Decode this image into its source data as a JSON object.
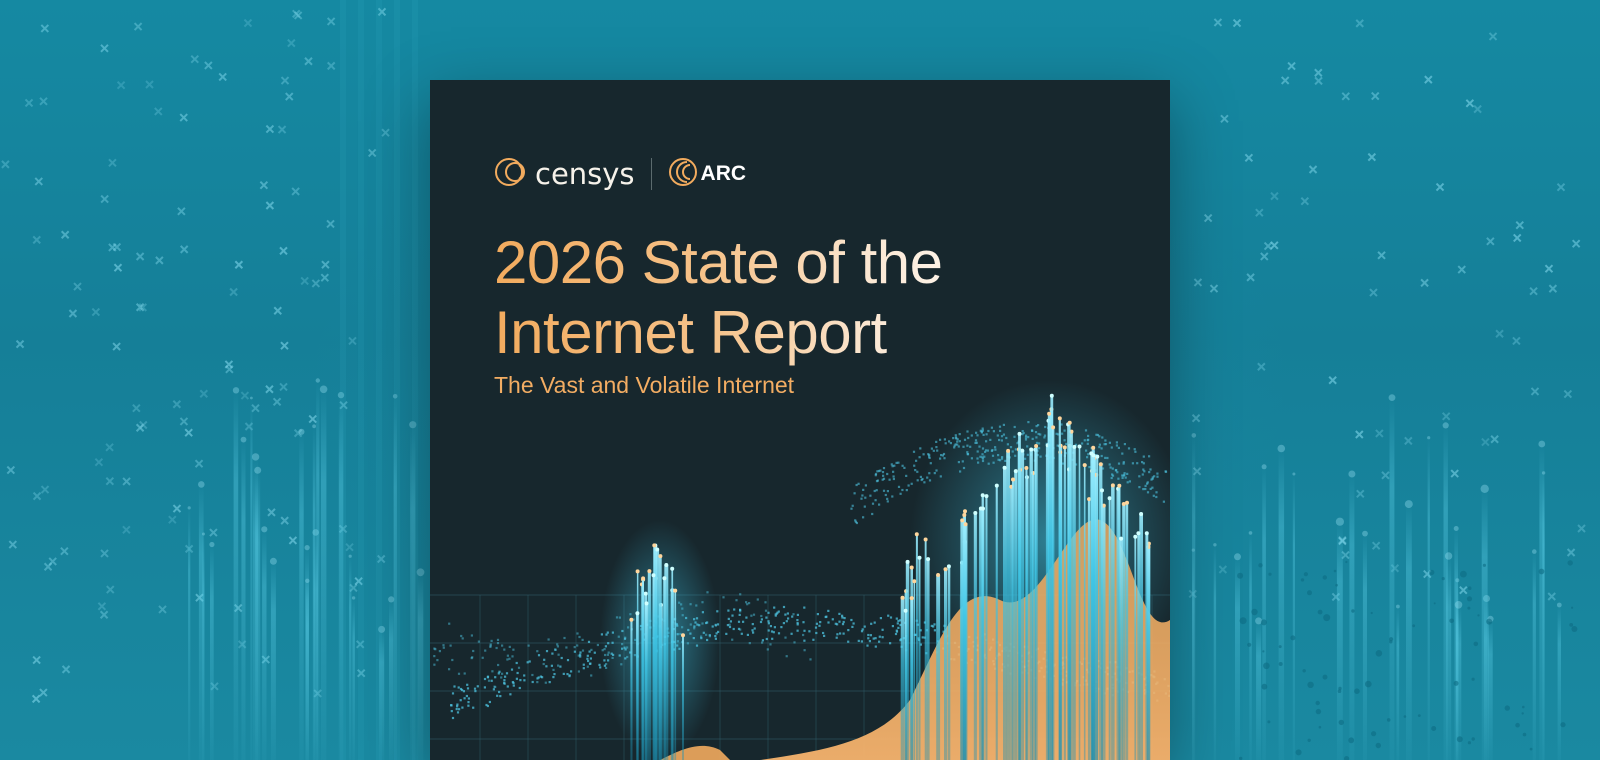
{
  "cover": {
    "brand_primary": "censys",
    "brand_secondary": "ARC",
    "title_line1": "2026 State of the",
    "title_line2": "Internet Report",
    "subtitle": "The Vast and Volatile Internet"
  },
  "colors": {
    "page_background": "#137e97",
    "cover_background": "#17272d",
    "accent_orange": "#f2ab5e",
    "accent_cyan": "#3fc6e6",
    "title_light": "#fffaf4"
  },
  "icons": {
    "censys_logo": "censys-logo-icon",
    "arc_logo": "arc-logo-icon"
  }
}
